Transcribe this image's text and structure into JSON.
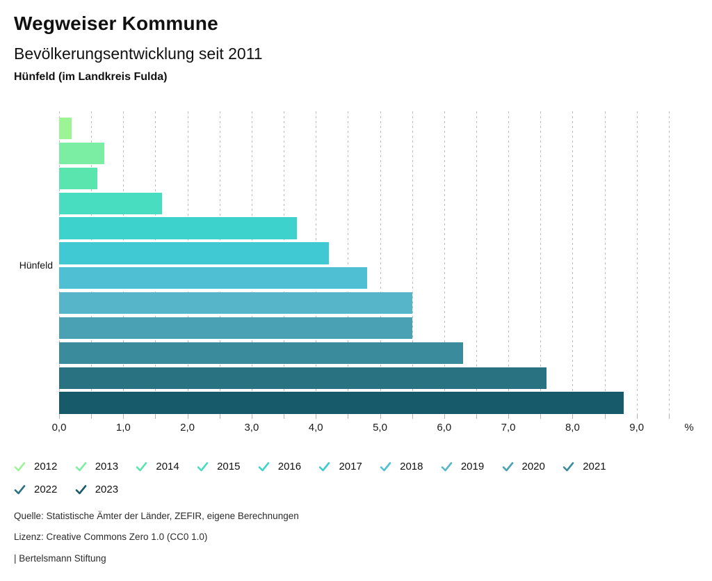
{
  "header": {
    "title": "Wegweiser Kommune",
    "subtitle": "Bevölkerungsentwicklung seit 2011",
    "location": "Hünfeld (im Landkreis Fulda)"
  },
  "chart_data": {
    "type": "bar",
    "orientation": "horizontal",
    "title": "Bevölkerungsentwicklung seit 2011",
    "category_label": "Hünfeld",
    "unit": "%",
    "categories": [
      "2012",
      "2013",
      "2014",
      "2015",
      "2016",
      "2017",
      "2018",
      "2019",
      "2020",
      "2021",
      "2022",
      "2023"
    ],
    "values": [
      0.2,
      0.7,
      0.6,
      1.6,
      3.7,
      4.2,
      4.8,
      5.5,
      5.5,
      6.3,
      7.6,
      8.8
    ],
    "colors": [
      "#9CF494",
      "#7BEEA4",
      "#5BE5AE",
      "#48DCC0",
      "#3DD3CC",
      "#40C9D2",
      "#4FBFD3",
      "#57B5C9",
      "#4AA1B3",
      "#3A8C9C",
      "#287282",
      "#175A69"
    ],
    "x_tick_labels": [
      "0,0",
      "1,0",
      "2,0",
      "3,0",
      "4,0",
      "5,0",
      "6,0",
      "7,0",
      "8,0",
      "9,0"
    ],
    "xlim": [
      0,
      9.5
    ],
    "grid_step": 0.5,
    "grid": true,
    "legend_position": "bottom"
  },
  "footer": {
    "source": "Quelle: Statistische Ämter der Länder, ZEFIR, eigene Berechnungen",
    "license": "Lizenz: Creative Commons Zero 1.0 (CC0 1.0)",
    "attribution": "| Bertelsmann Stiftung"
  }
}
